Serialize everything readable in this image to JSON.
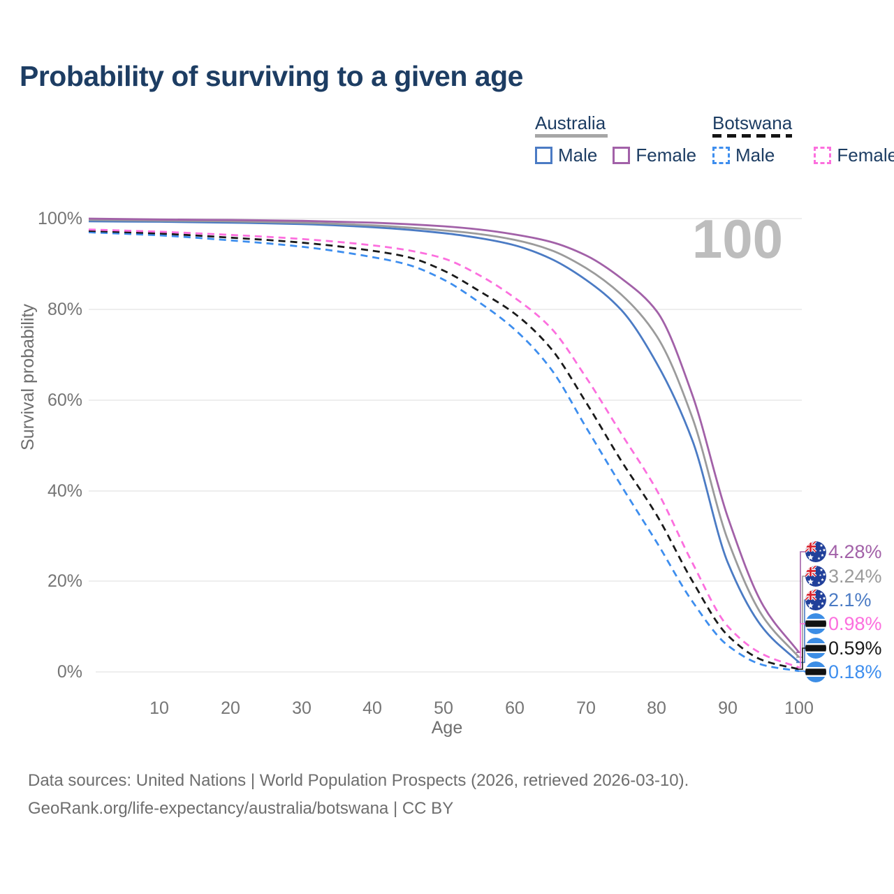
{
  "title": "Probability of surviving to a given age",
  "legend": {
    "australia": {
      "label": "Australia",
      "male_label": "Male",
      "female_label": "Female",
      "line_style": "solid",
      "male_color": "#4b7bc4",
      "female_color": "#a261a8",
      "overall_color": "#9b9b9b"
    },
    "botswana": {
      "label": "Botswana",
      "male_label": "Male",
      "female_label": "Female",
      "line_style": "dashed",
      "male_color": "#3e8eee",
      "female_color": "#fc6fde",
      "overall_color": "#1a1a1a"
    }
  },
  "watermark": "100",
  "axes": {
    "y_label": "Survival probability",
    "x_label": "Age",
    "y_ticks": [
      "100%",
      "80%",
      "60%",
      "40%",
      "20%",
      "0%"
    ],
    "x_ticks": [
      "10",
      "20",
      "30",
      "40",
      "50",
      "60",
      "70",
      "80",
      "90",
      "100"
    ]
  },
  "end_labels": [
    {
      "value": "4.28%",
      "color": "#a261a8",
      "flag": "australia",
      "series": 5
    },
    {
      "value": "3.24%",
      "color": "#9b9b9b",
      "flag": "australia",
      "series": 4
    },
    {
      "value": "2.1%",
      "color": "#4b7bc4",
      "flag": "australia",
      "series": 3
    },
    {
      "value": "0.98%",
      "color": "#fc6fde",
      "flag": "botswana",
      "series": 2
    },
    {
      "value": "0.59%",
      "color": "#1a1a1a",
      "flag": "botswana",
      "series": 1
    },
    {
      "value": "0.18%",
      "color": "#3e8eee",
      "flag": "botswana",
      "series": 0
    }
  ],
  "footer": {
    "line1": "Data sources: United Nations | World Population Prospects (2026, retrieved 2026-03-10).",
    "line2": "GeoRank.org/life-expectancy/australia/botswana | CC BY"
  },
  "chart_data": {
    "type": "line",
    "title": "Probability of surviving to a given age",
    "xlabel": "Age",
    "ylabel": "Survival probability",
    "xlim": [
      0,
      100
    ],
    "ylim": [
      0,
      100
    ],
    "y_unit": "%",
    "grid": "horizontal",
    "legend_position": "top-right",
    "series": [
      {
        "name": "Botswana Male",
        "country": "Botswana",
        "sex": "male",
        "line": "dashed",
        "color": "#3e8eee",
        "end_value_pct": 0.18,
        "points": [
          [
            0,
            97.0
          ],
          [
            10,
            96.3
          ],
          [
            20,
            95.2
          ],
          [
            30,
            93.8
          ],
          [
            40,
            91.5
          ],
          [
            45,
            89.8
          ],
          [
            50,
            86.5
          ],
          [
            55,
            81.5
          ],
          [
            60,
            75.5
          ],
          [
            65,
            67.0
          ],
          [
            70,
            54.0
          ],
          [
            75,
            41.0
          ],
          [
            80,
            28.5
          ],
          [
            85,
            15.5
          ],
          [
            90,
            5.8
          ],
          [
            95,
            1.5
          ],
          [
            100,
            0.18
          ]
        ]
      },
      {
        "name": "Botswana (both sexes)",
        "country": "Botswana",
        "sex": "all",
        "line": "dashed",
        "color": "#1a1a1a",
        "end_value_pct": 0.59,
        "points": [
          [
            0,
            97.3
          ],
          [
            10,
            96.7
          ],
          [
            20,
            95.8
          ],
          [
            30,
            94.7
          ],
          [
            40,
            92.9
          ],
          [
            45,
            91.5
          ],
          [
            50,
            88.5
          ],
          [
            55,
            84.0
          ],
          [
            60,
            79.0
          ],
          [
            65,
            71.5
          ],
          [
            70,
            59.5
          ],
          [
            75,
            46.5
          ],
          [
            80,
            34.5
          ],
          [
            85,
            20.0
          ],
          [
            90,
            8.0
          ],
          [
            95,
            2.5
          ],
          [
            100,
            0.59
          ]
        ]
      },
      {
        "name": "Botswana Female",
        "country": "Botswana",
        "sex": "female",
        "line": "dashed",
        "color": "#fc6fde",
        "end_value_pct": 0.98,
        "points": [
          [
            0,
            97.6
          ],
          [
            10,
            97.1
          ],
          [
            20,
            96.4
          ],
          [
            30,
            95.5
          ],
          [
            40,
            94.1
          ],
          [
            45,
            93.0
          ],
          [
            50,
            91.2
          ],
          [
            55,
            87.5
          ],
          [
            60,
            82.5
          ],
          [
            65,
            76.0
          ],
          [
            70,
            65.0
          ],
          [
            75,
            52.5
          ],
          [
            80,
            40.0
          ],
          [
            85,
            24.0
          ],
          [
            90,
            10.0
          ],
          [
            95,
            3.8
          ],
          [
            100,
            0.98
          ]
        ]
      },
      {
        "name": "Australia Male",
        "country": "Australia",
        "sex": "male",
        "line": "solid",
        "color": "#4b7bc4",
        "end_value_pct": 2.1,
        "points": [
          [
            0,
            99.4
          ],
          [
            10,
            99.3
          ],
          [
            20,
            99.1
          ],
          [
            30,
            98.8
          ],
          [
            40,
            98.1
          ],
          [
            50,
            96.8
          ],
          [
            55,
            95.7
          ],
          [
            60,
            94.1
          ],
          [
            65,
            91.2
          ],
          [
            70,
            86.5
          ],
          [
            75,
            79.8
          ],
          [
            80,
            68.0
          ],
          [
            85,
            51.0
          ],
          [
            90,
            24.0
          ],
          [
            95,
            9.5
          ],
          [
            100,
            2.1
          ]
        ]
      },
      {
        "name": "Australia (both sexes)",
        "country": "Australia",
        "sex": "all",
        "line": "solid",
        "color": "#9b9b9b",
        "end_value_pct": 3.24,
        "points": [
          [
            0,
            99.7
          ],
          [
            10,
            99.55
          ],
          [
            20,
            99.4
          ],
          [
            30,
            99.1
          ],
          [
            40,
            98.5
          ],
          [
            50,
            97.4
          ],
          [
            55,
            96.6
          ],
          [
            60,
            95.3
          ],
          [
            65,
            93.1
          ],
          [
            70,
            89.1
          ],
          [
            75,
            83.2
          ],
          [
            80,
            74.0
          ],
          [
            85,
            56.0
          ],
          [
            90,
            29.0
          ],
          [
            95,
            12.0
          ],
          [
            100,
            3.24
          ]
        ]
      },
      {
        "name": "Australia Female",
        "country": "Australia",
        "sex": "female",
        "line": "solid",
        "color": "#a261a8",
        "end_value_pct": 4.28,
        "points": [
          [
            0,
            100
          ],
          [
            10,
            99.8
          ],
          [
            20,
            99.7
          ],
          [
            30,
            99.5
          ],
          [
            40,
            99.1
          ],
          [
            50,
            98.3
          ],
          [
            55,
            97.6
          ],
          [
            60,
            96.5
          ],
          [
            65,
            94.9
          ],
          [
            70,
            91.9
          ],
          [
            75,
            86.8
          ],
          [
            80,
            79.5
          ],
          [
            85,
            61.0
          ],
          [
            90,
            34.0
          ],
          [
            95,
            14.5
          ],
          [
            100,
            4.28
          ]
        ]
      }
    ]
  }
}
